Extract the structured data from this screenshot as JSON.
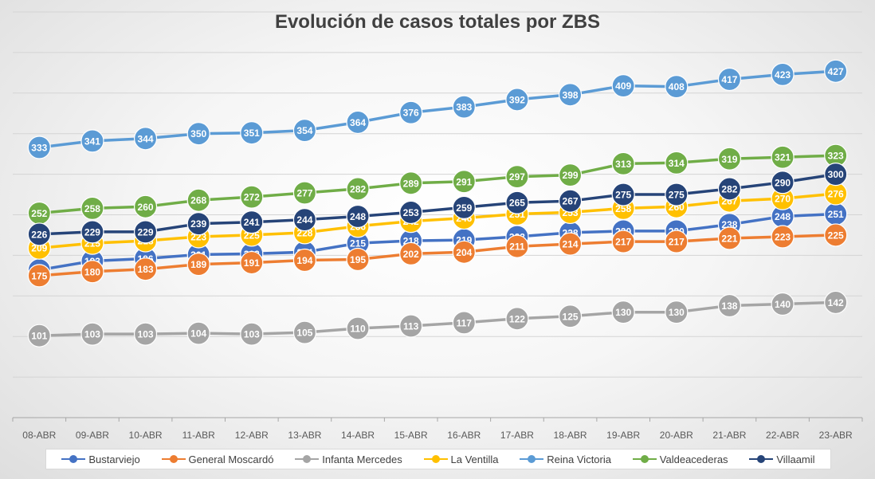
{
  "chart_data": {
    "type": "line",
    "title": "Evolución de casos totales por ZBS",
    "xlabel": "",
    "ylabel": "",
    "ylim": [
      0,
      500
    ],
    "grid": true,
    "legend_position": "bottom",
    "categories": [
      "08-ABR",
      "09-ABR",
      "10-ABR",
      "11-ABR",
      "12-ABR",
      "13-ABR",
      "14-ABR",
      "15-ABR",
      "16-ABR",
      "17-ABR",
      "18-ABR",
      "19-ABR",
      "20-ABR",
      "21-ABR",
      "22-ABR",
      "23-ABR"
    ],
    "series": [
      {
        "name": "Bustarviejo",
        "color": "#4472c4",
        "values": [
          182,
          193,
          196,
          201,
          202,
          204,
          215,
          218,
          219,
          223,
          228,
          230,
          230,
          238,
          248,
          251
        ]
      },
      {
        "name": "General Moscardó",
        "color": "#ed7d31",
        "values": [
          175,
          180,
          183,
          189,
          191,
          194,
          195,
          202,
          204,
          211,
          214,
          217,
          217,
          221,
          223,
          225
        ]
      },
      {
        "name": "Infanta Mercedes",
        "color": "#a5a5a5",
        "values": [
          101,
          103,
          103,
          104,
          103,
          105,
          110,
          113,
          117,
          122,
          125,
          130,
          130,
          138,
          140,
          142
        ]
      },
      {
        "name": "La Ventilla",
        "color": "#ffc000",
        "values": [
          209,
          215,
          218,
          223,
          225,
          228,
          236,
          242,
          246,
          251,
          253,
          258,
          260,
          267,
          270,
          276
        ]
      },
      {
        "name": "Reina Victoria",
        "color": "#5b9bd5",
        "values": [
          333,
          341,
          344,
          350,
          351,
          354,
          364,
          376,
          383,
          392,
          398,
          409,
          408,
          417,
          423,
          427
        ]
      },
      {
        "name": "Valdeacederas",
        "color": "#70ad47",
        "values": [
          252,
          258,
          260,
          268,
          272,
          277,
          282,
          289,
          291,
          297,
          299,
          313,
          314,
          319,
          321,
          323
        ]
      },
      {
        "name": "Villaamil",
        "color": "#264478",
        "values": [
          226,
          229,
          229,
          239,
          241,
          244,
          248,
          253,
          259,
          265,
          267,
          275,
          275,
          282,
          290,
          300
        ]
      }
    ]
  }
}
